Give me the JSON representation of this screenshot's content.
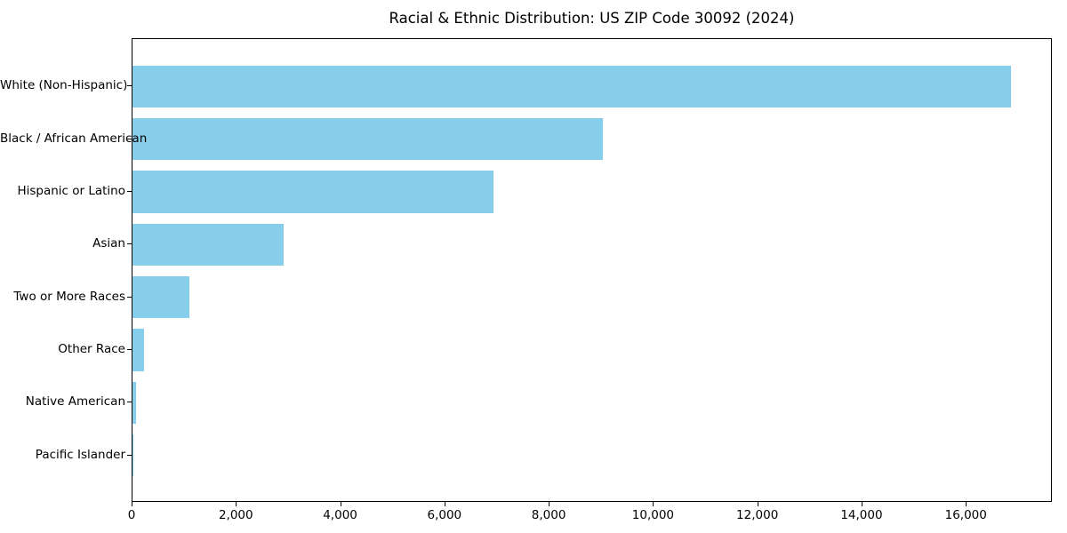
{
  "chart_data": {
    "type": "bar",
    "orientation": "horizontal",
    "title": "Racial & Ethnic Distribution: US ZIP Code 30092 (2024)",
    "categories": [
      "White (Non-Hispanic)",
      "Black / African American",
      "Hispanic or Latino",
      "Asian",
      "Two or More Races",
      "Other Race",
      "Native American",
      "Pacific Islander"
    ],
    "values": [
      16850,
      9020,
      6920,
      2900,
      1090,
      220,
      75,
      10
    ],
    "xlabel": "",
    "ylabel": "",
    "xlim": [
      0,
      17650
    ],
    "x_ticks": [
      0,
      2000,
      4000,
      6000,
      8000,
      10000,
      12000,
      14000,
      16000
    ],
    "x_tick_labels": [
      "0",
      "2,000",
      "4,000",
      "6,000",
      "8,000",
      "10,000",
      "12,000",
      "14,000",
      "16,000"
    ],
    "bar_color": "#87CEEB",
    "spine_color": "#000000",
    "grid": false,
    "legend": null
  }
}
